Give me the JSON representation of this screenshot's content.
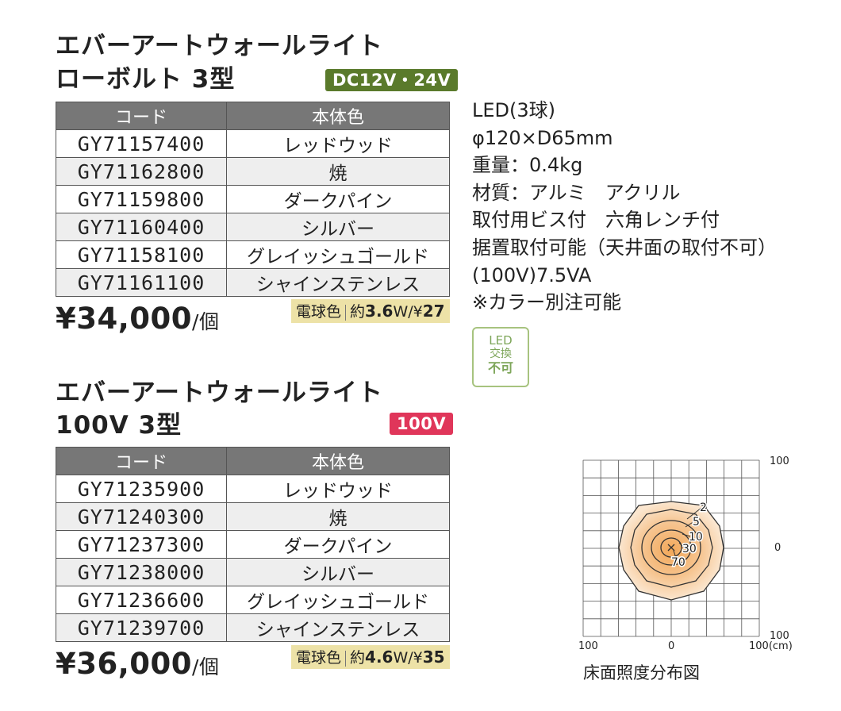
{
  "section1": {
    "title_line1": "エバーアートウォールライト",
    "title_line2": "ローボルト 3型",
    "badge": "DC12V・24V",
    "badge_color": "#5a7a2b",
    "table": {
      "headers": [
        "コード",
        "本体色"
      ],
      "rows": [
        {
          "code": "GY71157400",
          "color": "レッドウッド"
        },
        {
          "code": "GY71162800",
          "color": "焼"
        },
        {
          "code": "GY71159800",
          "color": "ダークパイン"
        },
        {
          "code": "GY71160400",
          "color": "シルバー"
        },
        {
          "code": "GY71158100",
          "color": "グレイッシュゴールド"
        },
        {
          "code": "GY71161100",
          "color": "シャインステンレス"
        }
      ]
    },
    "price": "¥34,000",
    "price_unit": "/個",
    "lamp_color": "電球色",
    "power_prefix": "約",
    "power": "3.6",
    "power_unit": "W/¥",
    "power_cost": "27"
  },
  "section2": {
    "title_line1": "エバーアートウォールライト",
    "title_line2": "100V 3型",
    "badge": "100V",
    "badge_color": "#e0365a",
    "table": {
      "headers": [
        "コード",
        "本体色"
      ],
      "rows": [
        {
          "code": "GY71235900",
          "color": "レッドウッド"
        },
        {
          "code": "GY71240300",
          "color": "焼"
        },
        {
          "code": "GY71237300",
          "color": "ダークパイン"
        },
        {
          "code": "GY71238000",
          "color": "シルバー"
        },
        {
          "code": "GY71236600",
          "color": "グレイッシュゴールド"
        },
        {
          "code": "GY71239700",
          "color": "シャインステンレス"
        }
      ]
    },
    "price": "¥36,000",
    "price_unit": "/個",
    "lamp_color": "電球色",
    "power_prefix": "約",
    "power": "4.6",
    "power_unit": "W/¥",
    "power_cost": "35"
  },
  "specs": [
    "LED(3球)",
    "φ120×D65mm",
    "重量：0.4kg",
    "材質：アルミ　アクリル",
    "取付用ビス付　六角レンチ付",
    "据置取付可能（天井面の取付不可）",
    "(100V)7.5VA",
    "※カラー別注可能"
  ],
  "led_badge": {
    "line1": "LED",
    "line2": "交換",
    "line3": "不可"
  },
  "diagram": {
    "caption": "床面照度分布図",
    "axis_right": {
      "top": "100",
      "middle": "0",
      "bottom": "100"
    },
    "axis_bottom": {
      "left": "100",
      "middle": "0",
      "right": "100(cm)"
    },
    "contour_labels": [
      "2",
      "5",
      "10",
      "30",
      "70"
    ],
    "glow_color": "#f2b77a"
  }
}
